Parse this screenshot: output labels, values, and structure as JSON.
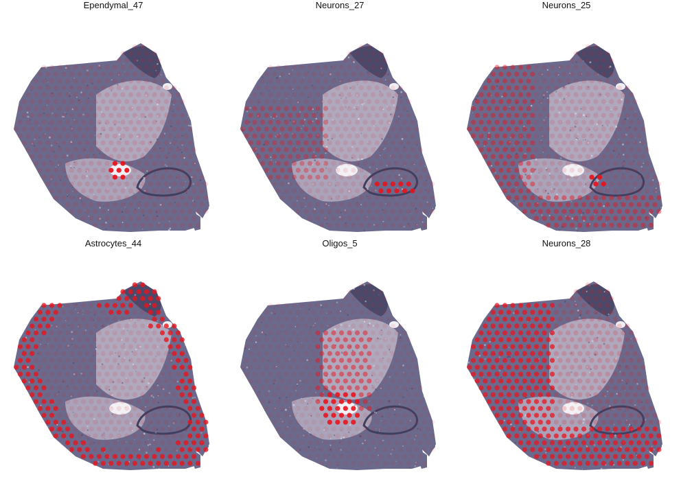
{
  "panels": [
    {
      "title": "Ependymal_47"
    },
    {
      "title": "Neurons_27"
    },
    {
      "title": "Neurons_25"
    },
    {
      "title": "Astrocytes_44"
    },
    {
      "title": "Oligos_5"
    },
    {
      "title": "Neurons_28"
    }
  ],
  "colors": {
    "tissue": "#6b6a8c",
    "tissue_dark": "#3f3f5f",
    "tissue_light": "#e9dbe6",
    "spot": "#e8141d",
    "background": "#ffffff"
  },
  "icons": {
    "spot_marker": "filled-circle"
  }
}
